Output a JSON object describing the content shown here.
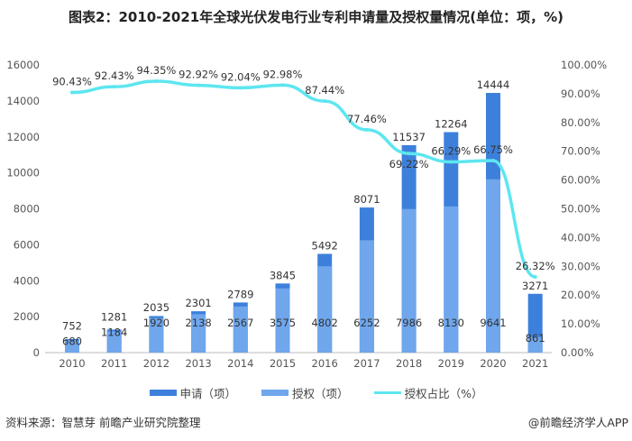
{
  "chart_data": {
    "type": "bar+line",
    "title": "图表2：2010-2021年全球光伏发电行业专利申请量及授权量情况(单位：项，%)",
    "categories": [
      "2010",
      "2011",
      "2012",
      "2013",
      "2014",
      "2015",
      "2016",
      "2017",
      "2018",
      "2019",
      "2020",
      "2021"
    ],
    "series": [
      {
        "name": "申请（项）",
        "type": "bar",
        "axis": "left",
        "color": "#3d80db",
        "values": [
          752,
          1281,
          2035,
          2301,
          2789,
          3845,
          5492,
          8071,
          11537,
          12264,
          14444,
          3271
        ]
      },
      {
        "name": "授权（项）",
        "type": "bar",
        "axis": "left",
        "color": "#6fa6ec",
        "values": [
          680,
          1184,
          1920,
          2138,
          2567,
          3575,
          4802,
          6252,
          7986,
          8130,
          9641,
          861
        ]
      },
      {
        "name": "授权占比（%）",
        "type": "line",
        "axis": "right",
        "color": "#5de6f0",
        "values": [
          90.43,
          92.43,
          94.35,
          92.92,
          92.04,
          92.98,
          87.44,
          77.46,
          69.22,
          66.29,
          66.75,
          26.32
        ]
      }
    ],
    "left_axis": {
      "ylim": [
        0,
        16000
      ],
      "ticks": [
        "0",
        "2000",
        "4000",
        "6000",
        "8000",
        "10000",
        "12000",
        "14000",
        "16000"
      ]
    },
    "right_axis": {
      "ylim": [
        0,
        100
      ],
      "ticks": [
        "0.00%",
        "10.00%",
        "20.00%",
        "30.00%",
        "40.00%",
        "50.00%",
        "60.00%",
        "70.00%",
        "80.00%",
        "90.00%",
        "100.00%"
      ]
    },
    "grid": false,
    "legend": "bottom"
  },
  "footer": {
    "source": "资料来源：智慧芽 前瞻产业研究院整理",
    "brand": "@前瞻经济学人APP"
  }
}
